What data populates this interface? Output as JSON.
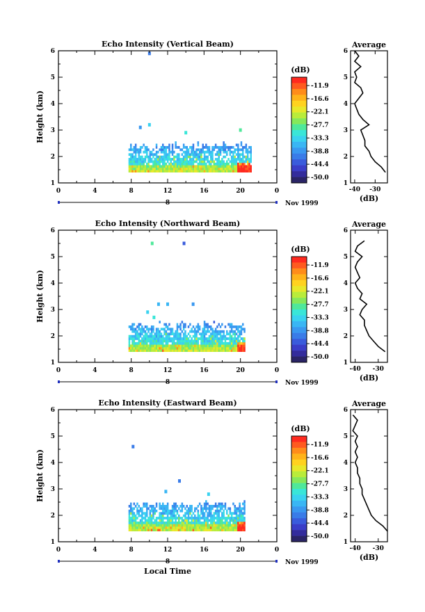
{
  "panels": [
    {
      "title": "Echo Intensity (Vertical Beam)",
      "ylabel": "Height (km)",
      "y_ticks": [
        "1",
        "2",
        "3",
        "4",
        "5",
        "6"
      ],
      "x_ticks": [
        "0",
        "4",
        "8",
        "12",
        "16",
        "20",
        "0"
      ],
      "date_day": "8",
      "date_label": "Nov 1999",
      "cbar_unit": "(dB)",
      "avg_title": "Average",
      "avg_xlabel": "(dB)",
      "avg_y_ticks": [
        "1",
        "2",
        "3",
        "4",
        "5",
        "6"
      ],
      "avg_x_ticks": [
        "-40",
        "-30"
      ]
    },
    {
      "title": "Echo Intensity (Northward Beam)",
      "ylabel": "Height (km)",
      "y_ticks": [
        "1",
        "2",
        "3",
        "4",
        "5",
        "6"
      ],
      "x_ticks": [
        "0",
        "4",
        "8",
        "12",
        "16",
        "20",
        "0"
      ],
      "date_day": "8",
      "date_label": "Nov 1999",
      "cbar_unit": "(dB)",
      "avg_title": "Average",
      "avg_xlabel": "(dB)",
      "avg_y_ticks": [
        "1",
        "2",
        "3",
        "4",
        "5",
        "6"
      ],
      "avg_x_ticks": [
        "-40",
        "-30"
      ]
    },
    {
      "title": "Echo Intensity (Eastward Beam)",
      "ylabel": "Height (km)",
      "y_ticks": [
        "1",
        "2",
        "3",
        "4",
        "5",
        "6"
      ],
      "x_ticks": [
        "0",
        "4",
        "8",
        "12",
        "16",
        "20",
        "0"
      ],
      "date_day": "8",
      "date_label": "Nov 1999",
      "cbar_unit": "(dB)",
      "avg_title": "Average",
      "avg_xlabel": "(dB)",
      "avg_y_ticks": [
        "1",
        "2",
        "3",
        "4",
        "5",
        "6"
      ],
      "avg_x_ticks": [
        "-40",
        "-30"
      ]
    }
  ],
  "xlabel_bottom": "Local Time",
  "colorbar": {
    "labels": [
      "-11.9",
      "-16.6",
      "-22.1",
      "-27.7",
      "-33.3",
      "-38.8",
      "-44.4",
      "-50.0"
    ],
    "colors": [
      "#ff2a1f",
      "#ff5a1f",
      "#ff8c1a",
      "#ffb31a",
      "#ffd21f",
      "#e8e82a",
      "#b9ec3a",
      "#86e85a",
      "#4fe89a",
      "#3ae6d8",
      "#3ad2f0",
      "#3ab6f4",
      "#3a98f0",
      "#3a7ce8",
      "#3a5cdc",
      "#3a3ec8",
      "#332c9c",
      "#2a2466"
    ]
  },
  "chart_data": [
    {
      "type": "heatmap",
      "title": "Echo Intensity (Vertical Beam)",
      "xlabel": "",
      "ylabel": "Height (km)",
      "xlim": [
        0,
        24
      ],
      "ylim": [
        1,
        6
      ],
      "value_range_db": [
        -50.0,
        -11.9
      ],
      "coverage": {
        "x_start_hour": 7.7,
        "x_end_hour": 21.2,
        "base_km": 1.4,
        "top_km": 2.5
      },
      "isolated_echoes": [
        {
          "x": 10.0,
          "y": 5.9,
          "db": -40
        },
        {
          "x": 9.0,
          "y": 3.1,
          "db": -38
        },
        {
          "x": 10.0,
          "y": 3.2,
          "db": -35
        },
        {
          "x": 14.0,
          "y": 2.9,
          "db": -33
        },
        {
          "x": 20.0,
          "y": 3.0,
          "db": -30
        }
      ],
      "average_profile": {
        "title": "Average",
        "xlabel": "(dB)",
        "xlim": [
          -42,
          -24
        ],
        "ylim": [
          1,
          6
        ],
        "heights": [
          1.4,
          1.6,
          1.8,
          2.0,
          2.2,
          2.4,
          2.6,
          2.8,
          3.0,
          3.2,
          3.4,
          3.6,
          3.8,
          4.0,
          4.2,
          4.4,
          4.6,
          4.8,
          5.0,
          5.2,
          5.4,
          5.6,
          5.8,
          6.0
        ],
        "values": [
          -25,
          -27,
          -30,
          -32,
          -33,
          -35,
          -35,
          -36,
          -37,
          -33,
          -36,
          -38,
          -39,
          -40,
          -38,
          -36,
          -37,
          -40,
          -39,
          -40,
          -37,
          -40,
          -38,
          -40
        ]
      }
    },
    {
      "type": "heatmap",
      "title": "Echo Intensity (Northward Beam)",
      "xlabel": "",
      "ylabel": "Height (km)",
      "xlim": [
        0,
        24
      ],
      "ylim": [
        1,
        6
      ],
      "value_range_db": [
        -50.0,
        -11.9
      ],
      "coverage": {
        "x_start_hour": 7.7,
        "x_end_hour": 20.4,
        "base_km": 1.4,
        "top_km": 2.5
      },
      "isolated_echoes": [
        {
          "x": 10.3,
          "y": 5.5,
          "db": -30
        },
        {
          "x": 13.8,
          "y": 5.5,
          "db": -43
        },
        {
          "x": 11.0,
          "y": 3.2,
          "db": -37
        },
        {
          "x": 12.0,
          "y": 3.2,
          "db": -36
        },
        {
          "x": 14.8,
          "y": 3.2,
          "db": -38
        },
        {
          "x": 9.8,
          "y": 2.9,
          "db": -34
        },
        {
          "x": 10.5,
          "y": 2.7,
          "db": -33
        }
      ],
      "average_profile": {
        "title": "Average",
        "xlabel": "(dB)",
        "xlim": [
          -42,
          -26
        ],
        "ylim": [
          1,
          6
        ],
        "heights": [
          1.4,
          1.6,
          1.8,
          2.0,
          2.2,
          2.4,
          2.6,
          2.8,
          3.0,
          3.2,
          3.4,
          3.6,
          3.8,
          4.0,
          4.2,
          4.4,
          4.6,
          4.8,
          5.0,
          5.2,
          5.4,
          5.6
        ],
        "values": [
          -27,
          -30,
          -32,
          -34,
          -35,
          -36,
          -36,
          -38,
          -37,
          -35,
          -38,
          -37,
          -39,
          -40,
          -38,
          -39,
          -40,
          -39,
          -37,
          -40,
          -39,
          -36
        ]
      }
    },
    {
      "type": "heatmap",
      "title": "Echo Intensity (Eastward Beam)",
      "xlabel": "Local Time",
      "ylabel": "Height (km)",
      "xlim": [
        0,
        24
      ],
      "ylim": [
        1,
        6
      ],
      "value_range_db": [
        -50.0,
        -11.9
      ],
      "coverage": {
        "x_start_hour": 7.7,
        "x_end_hour": 20.4,
        "base_km": 1.4,
        "top_km": 2.5
      },
      "isolated_echoes": [
        {
          "x": 8.2,
          "y": 4.6,
          "db": -40
        },
        {
          "x": 13.3,
          "y": 3.3,
          "db": -40
        },
        {
          "x": 11.8,
          "y": 2.9,
          "db": -36
        },
        {
          "x": 16.5,
          "y": 2.8,
          "db": -34
        }
      ],
      "average_profile": {
        "title": "Average",
        "xlabel": "(dB)",
        "xlim": [
          -42,
          -26
        ],
        "ylim": [
          1,
          6
        ],
        "heights": [
          1.4,
          1.6,
          1.8,
          2.0,
          2.2,
          2.4,
          2.6,
          2.8,
          3.0,
          3.2,
          3.4,
          3.6,
          3.8,
          4.0,
          4.2,
          4.4,
          4.6,
          4.8,
          5.0,
          5.2,
          5.4,
          5.6,
          5.8
        ],
        "values": [
          -26,
          -28,
          -31,
          -33,
          -34,
          -35,
          -36,
          -37,
          -37,
          -38,
          -38,
          -39,
          -39,
          -40,
          -39,
          -40,
          -39,
          -40,
          -39,
          -41,
          -40,
          -39,
          -41
        ]
      }
    }
  ]
}
